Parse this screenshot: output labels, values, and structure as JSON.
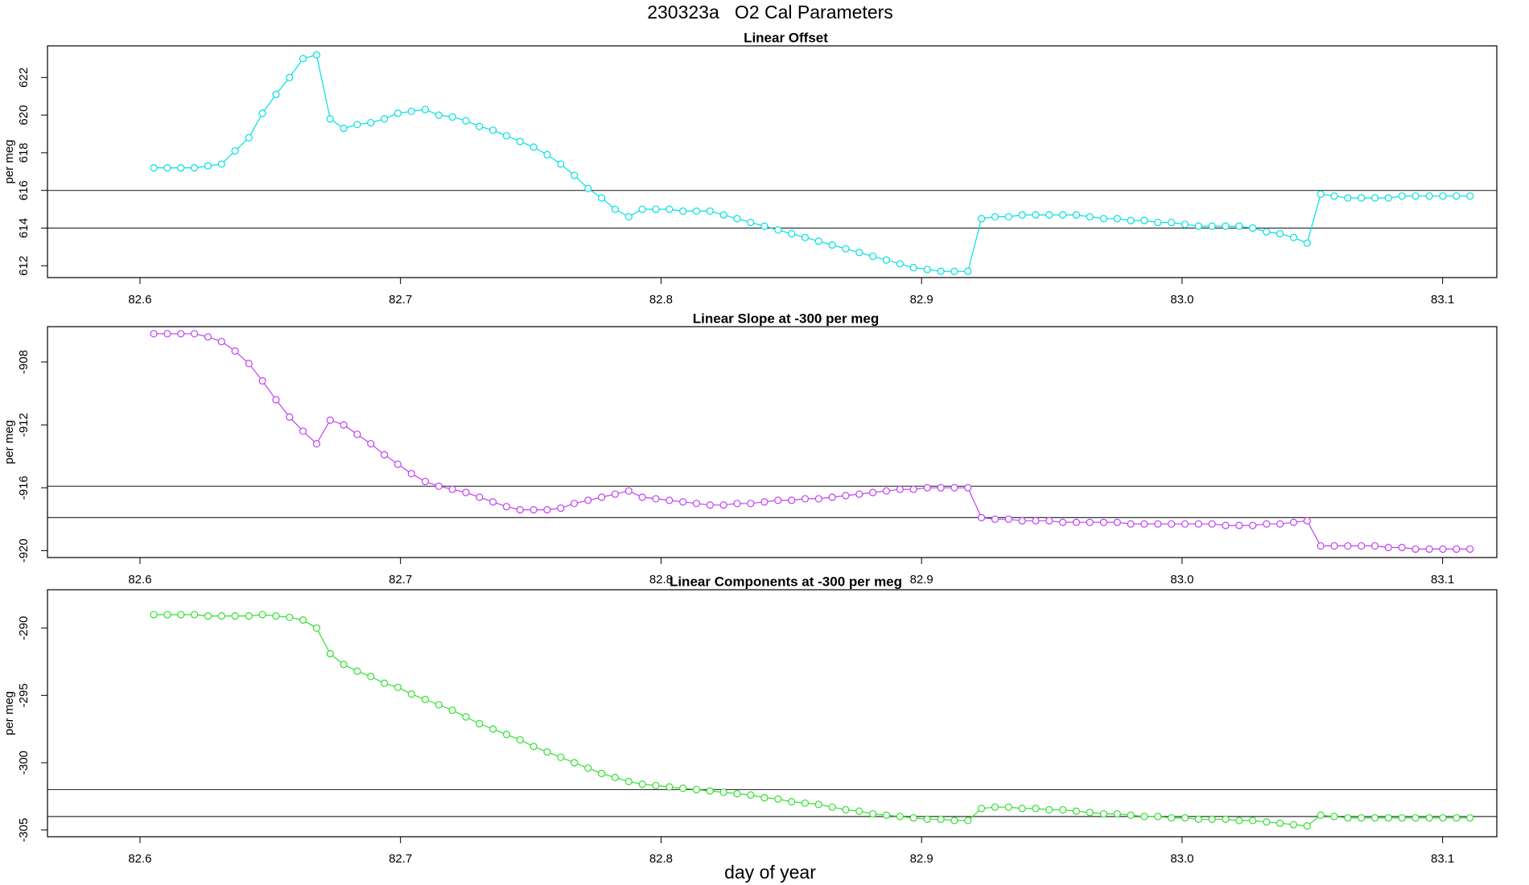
{
  "title": "230323a   O2 Cal Parameters",
  "x_label": "day of year",
  "chart_data": [
    {
      "type": "line",
      "title": "Linear Offset",
      "y_label": "per meg",
      "color": "#00e0e0",
      "x": [
        82.6053,
        82.6105,
        82.6157,
        82.6209,
        82.6261,
        82.6313,
        82.6365,
        82.6418,
        82.647,
        82.6522,
        82.6574,
        82.6626,
        82.6678,
        82.673,
        82.6782,
        82.6834,
        82.6886,
        82.6938,
        82.699,
        82.7042,
        82.7095,
        82.7147,
        82.7199,
        82.7251,
        82.7303,
        82.7355,
        82.7407,
        82.7459,
        82.7511,
        82.7563,
        82.7615,
        82.7667,
        82.772,
        82.7772,
        82.7824,
        82.7876,
        82.7928,
        82.798,
        82.8032,
        82.8084,
        82.8136,
        82.8188,
        82.824,
        82.8292,
        82.8344,
        82.8397,
        82.8449,
        82.8501,
        82.8553,
        82.8605,
        82.8657,
        82.8709,
        82.8761,
        82.8813,
        82.8865,
        82.8917,
        82.8969,
        82.9022,
        82.9074,
        82.9126,
        82.9178,
        82.923,
        82.9282,
        82.9334,
        82.9386,
        82.9438,
        82.949,
        82.9542,
        82.9594,
        82.9646,
        82.9699,
        82.9751,
        82.9803,
        82.9855,
        82.9907,
        82.9959,
        83.0011,
        83.0063,
        83.0115,
        83.0167,
        83.0219,
        83.0271,
        83.0324,
        83.0376,
        83.0428,
        83.048,
        83.0532,
        83.0584,
        83.0636,
        83.0688,
        83.074,
        83.0792,
        83.0844,
        83.0896,
        83.0949,
        83.1001,
        83.1053,
        83.1105
      ],
      "values": [
        617.2,
        617.2,
        617.2,
        617.2,
        617.3,
        617.4,
        618.1,
        618.8,
        620.1,
        621.1,
        622.0,
        623.0,
        623.2,
        619.8,
        619.3,
        619.5,
        619.6,
        619.8,
        620.1,
        620.2,
        620.3,
        620.0,
        619.9,
        619.7,
        619.4,
        619.2,
        618.9,
        618.6,
        618.3,
        617.9,
        617.4,
        616.8,
        616.1,
        615.6,
        615.0,
        614.6,
        615.0,
        615.0,
        615.0,
        614.9,
        614.9,
        614.9,
        614.7,
        614.5,
        614.3,
        614.1,
        613.9,
        613.7,
        613.5,
        613.3,
        613.1,
        612.9,
        612.7,
        612.5,
        612.3,
        612.1,
        611.9,
        611.8,
        611.7,
        611.7,
        611.7,
        614.5,
        614.6,
        614.6,
        614.7,
        614.7,
        614.7,
        614.7,
        614.7,
        614.6,
        614.5,
        614.5,
        614.4,
        614.4,
        614.3,
        614.3,
        614.2,
        614.1,
        614.1,
        614.1,
        614.1,
        614.0,
        613.8,
        613.7,
        613.5,
        613.2,
        615.8,
        615.7,
        615.6,
        615.6,
        615.6,
        615.6,
        615.7,
        615.7,
        615.7,
        615.7,
        615.7,
        615.7
      ],
      "hlines": [
        616,
        614
      ],
      "xlim": [
        82.5645,
        83.1208
      ],
      "xticks": [
        82.6,
        82.7,
        82.8,
        82.9,
        {
          "value": 83,
          "label": "83.0"
        },
        83.1
      ],
      "ylim": [
        611.37,
        623.68
      ],
      "yticks": [
        612,
        614,
        616,
        618,
        620,
        622
      ]
    },
    {
      "type": "line",
      "title": "Linear Slope at -300 per meg",
      "y_label": "per meg",
      "color": "#c040f0",
      "x": [
        82.6053,
        82.6105,
        82.6157,
        82.6209,
        82.6261,
        82.6313,
        82.6365,
        82.6418,
        82.647,
        82.6522,
        82.6574,
        82.6626,
        82.6678,
        82.673,
        82.6782,
        82.6834,
        82.6886,
        82.6938,
        82.699,
        82.7042,
        82.7095,
        82.7147,
        82.7199,
        82.7251,
        82.7303,
        82.7355,
        82.7407,
        82.7459,
        82.7511,
        82.7563,
        82.7615,
        82.7667,
        82.772,
        82.7772,
        82.7824,
        82.7876,
        82.7928,
        82.798,
        82.8032,
        82.8084,
        82.8136,
        82.8188,
        82.824,
        82.8292,
        82.8344,
        82.8397,
        82.8449,
        82.8501,
        82.8553,
        82.8605,
        82.8657,
        82.8709,
        82.8761,
        82.8813,
        82.8865,
        82.8917,
        82.8969,
        82.9022,
        82.9074,
        82.9126,
        82.9178,
        82.923,
        82.9282,
        82.9334,
        82.9386,
        82.9438,
        82.949,
        82.9542,
        82.9594,
        82.9646,
        82.9699,
        82.9751,
        82.9803,
        82.9855,
        82.9907,
        82.9959,
        83.0011,
        83.0063,
        83.0115,
        83.0167,
        83.0219,
        83.0271,
        83.0324,
        83.0376,
        83.0428,
        83.048,
        83.0532,
        83.0584,
        83.0636,
        83.0688,
        83.074,
        83.0792,
        83.0844,
        83.0896,
        83.0949,
        83.1001,
        83.1053,
        83.1105
      ],
      "values": [
        -906.2,
        -906.2,
        -906.2,
        -906.2,
        -906.4,
        -906.7,
        -907.3,
        -908.1,
        -909.2,
        -910.4,
        -911.5,
        -912.4,
        -913.2,
        -911.7,
        -912.0,
        -912.6,
        -913.2,
        -913.9,
        -914.5,
        -915.1,
        -915.6,
        -915.9,
        -916.1,
        -916.3,
        -916.6,
        -916.9,
        -917.2,
        -917.4,
        -917.4,
        -917.4,
        -917.3,
        -917.0,
        -916.8,
        -916.6,
        -916.4,
        -916.2,
        -916.6,
        -916.7,
        -916.8,
        -916.9,
        -917.0,
        -917.1,
        -917.1,
        -917.0,
        -917.0,
        -916.9,
        -916.8,
        -916.8,
        -916.7,
        -916.7,
        -916.6,
        -916.5,
        -916.4,
        -916.3,
        -916.2,
        -916.1,
        -916.1,
        -916.0,
        -916.0,
        -916.0,
        -916.0,
        -917.9,
        -918.0,
        -918.0,
        -918.1,
        -918.1,
        -918.1,
        -918.2,
        -918.2,
        -918.2,
        -918.2,
        -918.2,
        -918.3,
        -918.3,
        -918.3,
        -918.3,
        -918.3,
        -918.3,
        -918.3,
        -918.4,
        -918.4,
        -918.4,
        -918.3,
        -918.3,
        -918.2,
        -918.1,
        -919.7,
        -919.7,
        -919.7,
        -919.7,
        -919.7,
        -919.8,
        -919.8,
        -919.9,
        -919.9,
        -919.9,
        -919.9,
        -919.9
      ],
      "hlines": [
        -915.9,
        -917.9
      ],
      "xlim": [
        82.5645,
        83.1208
      ],
      "xticks": [
        82.6,
        82.7,
        82.8,
        82.9,
        {
          "value": 83,
          "label": "83.0"
        },
        83.1
      ],
      "ylim": [
        -920.44,
        -905.75
      ],
      "yticks": [
        -908,
        -912,
        -916,
        -920
      ]
    },
    {
      "type": "line",
      "title": "Linear Components at -300 per meg",
      "y_label": "per meg",
      "color": "#30e030",
      "x": [
        82.6053,
        82.6105,
        82.6157,
        82.6209,
        82.6261,
        82.6313,
        82.6365,
        82.6418,
        82.647,
        82.6522,
        82.6574,
        82.6626,
        82.6678,
        82.673,
        82.6782,
        82.6834,
        82.6886,
        82.6938,
        82.699,
        82.7042,
        82.7095,
        82.7147,
        82.7199,
        82.7251,
        82.7303,
        82.7355,
        82.7407,
        82.7459,
        82.7511,
        82.7563,
        82.7615,
        82.7667,
        82.772,
        82.7772,
        82.7824,
        82.7876,
        82.7928,
        82.798,
        82.8032,
        82.8084,
        82.8136,
        82.8188,
        82.824,
        82.8292,
        82.8344,
        82.8397,
        82.8449,
        82.8501,
        82.8553,
        82.8605,
        82.8657,
        82.8709,
        82.8761,
        82.8813,
        82.8865,
        82.8917,
        82.8969,
        82.9022,
        82.9074,
        82.9126,
        82.9178,
        82.923,
        82.9282,
        82.9334,
        82.9386,
        82.9438,
        82.949,
        82.9542,
        82.9594,
        82.9646,
        82.9699,
        82.9751,
        82.9803,
        82.9855,
        82.9907,
        82.9959,
        83.0011,
        83.0063,
        83.0115,
        83.0167,
        83.0219,
        83.0271,
        83.0324,
        83.0376,
        83.0428,
        83.048,
        83.0532,
        83.0584,
        83.0636,
        83.0688,
        83.074,
        83.0792,
        83.0844,
        83.0896,
        83.0949,
        83.1001,
        83.1053,
        83.1105
      ],
      "values": [
        -289.0,
        -289.0,
        -289.0,
        -289.0,
        -289.1,
        -289.1,
        -289.1,
        -289.1,
        -289.0,
        -289.1,
        -289.2,
        -289.4,
        -290.0,
        -291.9,
        -292.7,
        -293.2,
        -293.6,
        -294.1,
        -294.4,
        -294.9,
        -295.3,
        -295.7,
        -296.1,
        -296.6,
        -297.1,
        -297.5,
        -297.9,
        -298.3,
        -298.8,
        -299.2,
        -299.6,
        -300.0,
        -300.4,
        -300.8,
        -301.1,
        -301.4,
        -301.6,
        -301.7,
        -301.8,
        -301.9,
        -302.0,
        -302.1,
        -302.2,
        -302.3,
        -302.4,
        -302.6,
        -302.7,
        -302.9,
        -303.0,
        -303.1,
        -303.3,
        -303.5,
        -303.6,
        -303.8,
        -303.9,
        -304.0,
        -304.1,
        -304.2,
        -304.2,
        -304.3,
        -304.3,
        -303.4,
        -303.3,
        -303.3,
        -303.4,
        -303.4,
        -303.5,
        -303.5,
        -303.6,
        -303.7,
        -303.8,
        -303.8,
        -303.9,
        -304.0,
        -304.0,
        -304.1,
        -304.1,
        -304.2,
        -304.2,
        -304.2,
        -304.3,
        -304.3,
        -304.4,
        -304.5,
        -304.6,
        -304.7,
        -303.9,
        -304.0,
        -304.1,
        -304.1,
        -304.1,
        -304.1,
        -304.1,
        -304.1,
        -304.1,
        -304.1,
        -304.1,
        -304.1
      ],
      "hlines": [
        -302,
        -304
      ],
      "xlim": [
        82.5645,
        83.1208
      ],
      "xticks": [
        82.6,
        82.7,
        82.8,
        82.9,
        {
          "value": 83,
          "label": "83.0"
        },
        83.1
      ],
      "ylim": [
        -305.5,
        -287.15
      ],
      "yticks": [
        -290,
        -295,
        -300,
        -305
      ]
    }
  ]
}
